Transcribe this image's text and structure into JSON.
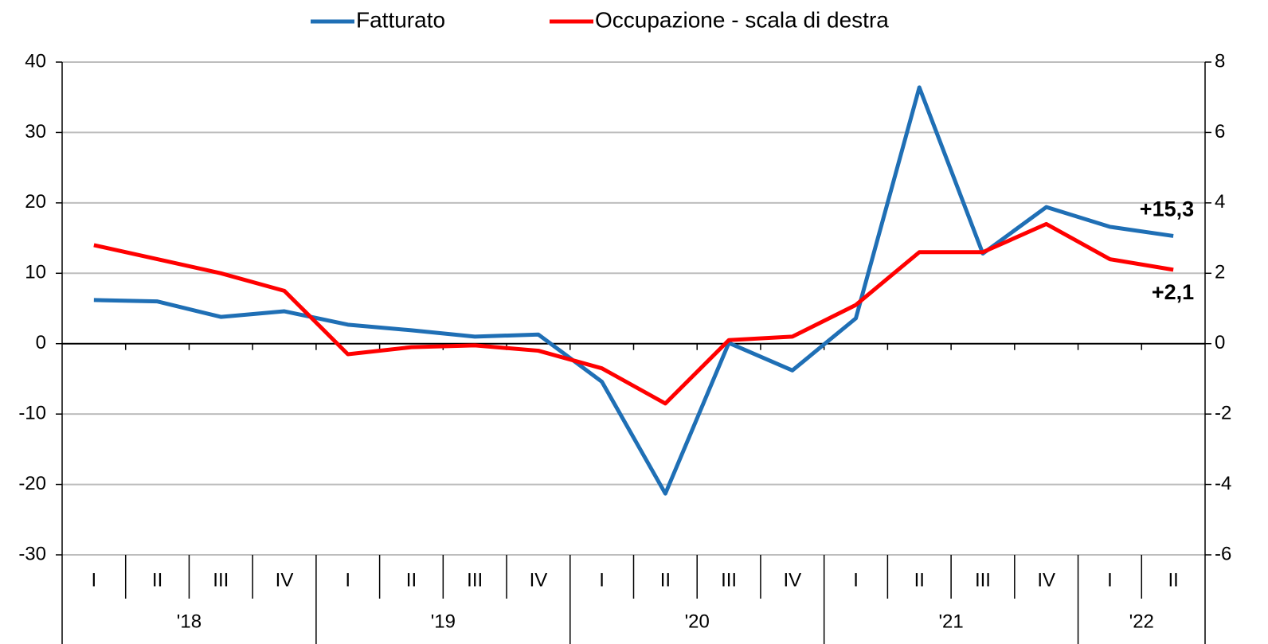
{
  "chart_data": {
    "type": "line",
    "categories": [
      "I",
      "II",
      "III",
      "IV",
      "I",
      "II",
      "III",
      "IV",
      "I",
      "II",
      "III",
      "IV",
      "I",
      "II",
      "III",
      "IV",
      "I",
      "II"
    ],
    "groups": [
      {
        "label": "'18",
        "count": 4
      },
      {
        "label": "'19",
        "count": 4
      },
      {
        "label": "'20",
        "count": 4
      },
      {
        "label": "'21",
        "count": 4
      },
      {
        "label": "'22",
        "count": 2
      }
    ],
    "series": [
      {
        "name": "Fatturato",
        "color": "#1f6fb5",
        "values": [
          6.2,
          6.0,
          3.8,
          4.6,
          2.7,
          1.9,
          1.0,
          1.3,
          -5.4,
          -21.3,
          0.1,
          -3.8,
          3.6,
          36.4,
          12.8,
          19.4,
          16.6,
          15.3
        ],
        "value_labels": [
          null,
          null,
          null,
          null,
          null,
          null,
          null,
          null,
          null,
          null,
          null,
          null,
          null,
          null,
          null,
          null,
          null,
          "+15,3"
        ]
      },
      {
        "name": "Occupazione - scala di destra",
        "color": "#ff0000",
        "axis": "y2",
        "values": [
          2.8,
          2.4,
          2.0,
          1.5,
          -0.3,
          -0.1,
          -0.05,
          -0.2,
          -0.7,
          -1.7,
          0.1,
          0.2,
          1.1,
          2.6,
          2.6,
          3.4,
          2.4,
          2.1
        ],
        "value_labels": [
          null,
          null,
          null,
          null,
          null,
          null,
          null,
          null,
          null,
          null,
          null,
          null,
          null,
          null,
          null,
          null,
          null,
          "+2,1"
        ]
      }
    ],
    "ylim": [
      -30,
      40
    ],
    "yticks": [
      -30,
      -20,
      -10,
      0,
      10,
      20,
      30,
      40
    ],
    "y2lim": [
      -6,
      8
    ],
    "y2ticks": [
      -6,
      -4,
      -2,
      0,
      2,
      4,
      6,
      8
    ],
    "grid": true,
    "legend": "top"
  }
}
